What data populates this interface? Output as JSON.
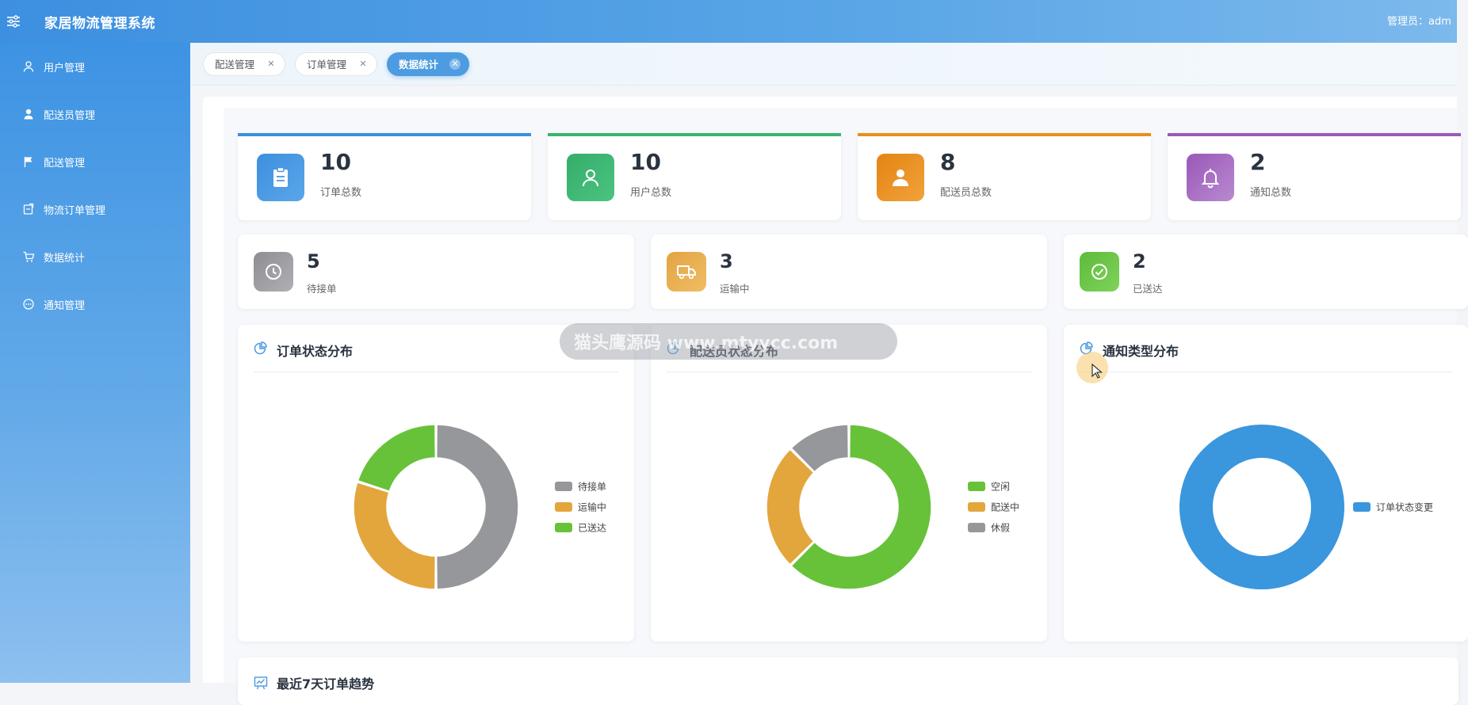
{
  "header": {
    "title": "家居物流管理系统",
    "admin": "管理员：adm"
  },
  "sidebar": {
    "items": [
      {
        "label": "用户管理",
        "icon": "user-outline-icon"
      },
      {
        "label": "配送员管理",
        "icon": "user-solid-icon"
      },
      {
        "label": "配送管理",
        "icon": "flag-icon"
      },
      {
        "label": "物流订单管理",
        "icon": "document-icon"
      },
      {
        "label": "数据统计",
        "icon": "cart-icon"
      },
      {
        "label": "通知管理",
        "icon": "chat-bubble-icon"
      }
    ]
  },
  "tabs": [
    {
      "label": "配送管理",
      "active": false
    },
    {
      "label": "订单管理",
      "active": false
    },
    {
      "label": "数据统计",
      "active": true
    }
  ],
  "stats_top": [
    {
      "value": "10",
      "label": "订单总数",
      "color": "#3d8fde",
      "icon": "clipboard-icon"
    },
    {
      "value": "10",
      "label": "用户总数",
      "color": "#3cb371",
      "icon": "user-icon"
    },
    {
      "value": "8",
      "label": "配送员总数",
      "color": "#e8901a",
      "icon": "courier-icon"
    },
    {
      "value": "2",
      "label": "通知总数",
      "color": "#9b59b6",
      "icon": "bell-icon"
    }
  ],
  "stats_mid": [
    {
      "value": "5",
      "label": "待接单",
      "color": "#9e9ea2",
      "icon": "clock-icon"
    },
    {
      "value": "3",
      "label": "运输中",
      "color": "#e5ad4d",
      "icon": "truck-icon"
    },
    {
      "value": "2",
      "label": "已送达",
      "color": "#6cc644",
      "icon": "check-circle-icon"
    }
  ],
  "watermark": "猫头鹰源码 www.mtyycc.com",
  "trend": {
    "title": "最近7天订单趋势"
  },
  "chart_data": [
    {
      "type": "pie",
      "title": "订单状态分布",
      "categories": [
        "待接单",
        "运输中",
        "已送达"
      ],
      "values": [
        5,
        3,
        2
      ],
      "colors": [
        "#96979b",
        "#e3a63c",
        "#67c23a"
      ],
      "legend": "right"
    },
    {
      "type": "pie",
      "title": "配送员状态分布",
      "categories": [
        "空闲",
        "配送中",
        "休假"
      ],
      "values": [
        5,
        2,
        1
      ],
      "colors": [
        "#67c23a",
        "#e3a63c",
        "#96979b"
      ],
      "legend": "right"
    },
    {
      "type": "pie",
      "title": "通知类型分布",
      "categories": [
        "订单状态变更"
      ],
      "values": [
        2
      ],
      "colors": [
        "#3a96dd"
      ],
      "legend": "right"
    }
  ]
}
